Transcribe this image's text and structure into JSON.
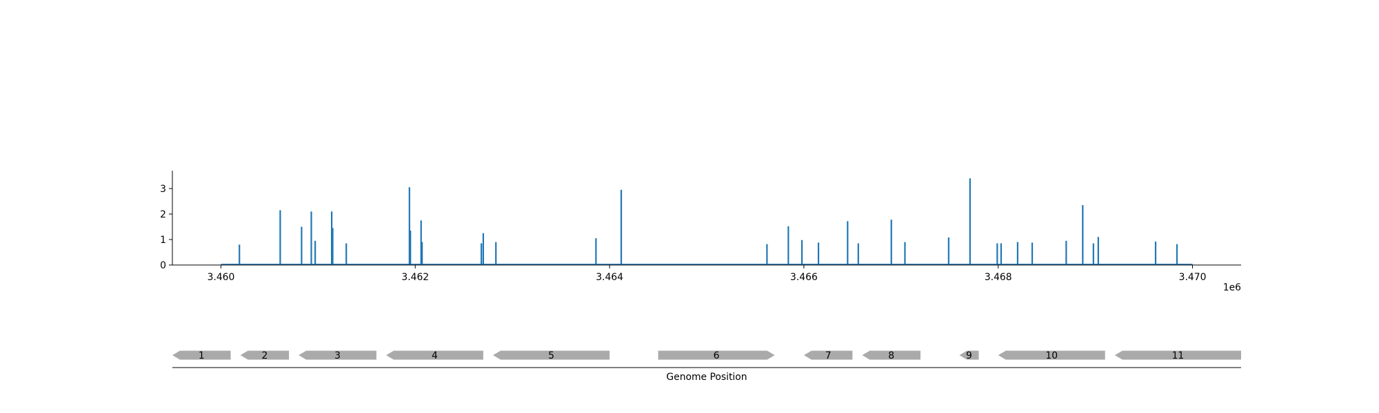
{
  "chart_data": [
    {
      "type": "bar",
      "subtype": "coverage-spikes",
      "title": "",
      "xlabel": "",
      "ylabel": "",
      "x_offset_label": "1e6",
      "x_ticks": [
        3.46,
        3.462,
        3.464,
        3.466,
        3.468,
        3.47
      ],
      "x_tick_labels": [
        "3.460",
        "3.462",
        "3.464",
        "3.466",
        "3.468",
        "3.470"
      ],
      "y_ticks": [
        0,
        1,
        2,
        3
      ],
      "y_tick_labels": [
        "0",
        "1",
        "2",
        "3"
      ],
      "xlim": [
        3.4595,
        3.4705
      ],
      "ylim": [
        0,
        3.7
      ],
      "baseline_range": [
        3.46,
        3.47
      ],
      "color": "#1f77b4",
      "grid": false,
      "x": [
        3.46019,
        3.46061,
        3.46083,
        3.46093,
        3.46097,
        3.46114,
        3.46115,
        3.46129,
        3.46194,
        3.46195,
        3.46206,
        3.46207,
        3.46268,
        3.4627,
        3.46283,
        3.46386,
        3.46412,
        3.46562,
        3.46584,
        3.46598,
        3.46615,
        3.46645,
        3.46656,
        3.4669,
        3.46704,
        3.46749,
        3.46771,
        3.46799,
        3.46803,
        3.4682,
        3.46835,
        3.4687,
        3.46887,
        3.46898,
        3.46903,
        3.46962,
        3.46984
      ],
      "values": [
        0.8,
        2.15,
        1.5,
        2.1,
        0.95,
        2.1,
        1.45,
        0.85,
        3.05,
        1.35,
        1.75,
        0.9,
        0.85,
        1.25,
        0.9,
        1.05,
        2.95,
        0.82,
        1.52,
        0.98,
        0.88,
        1.72,
        0.85,
        1.78,
        0.9,
        1.08,
        3.4,
        0.85,
        0.85,
        0.9,
        0.88,
        0.95,
        2.35,
        0.85,
        1.1,
        0.92,
        0.82
      ]
    },
    {
      "type": "gene-track",
      "title": "",
      "xlabel": "Genome Position",
      "genes": [
        {
          "label": "1",
          "start": 3.4595,
          "end": 3.4601,
          "strand": "-"
        },
        {
          "label": "2",
          "start": 3.4602,
          "end": 3.4607,
          "strand": "-"
        },
        {
          "label": "3",
          "start": 3.4608,
          "end": 3.4616,
          "strand": "-"
        },
        {
          "label": "4",
          "start": 3.4617,
          "end": 3.4627,
          "strand": "-"
        },
        {
          "label": "5",
          "start": 3.4628,
          "end": 3.464,
          "strand": "-"
        },
        {
          "label": "6",
          "start": 3.4645,
          "end": 3.4657,
          "strand": "+"
        },
        {
          "label": "7",
          "start": 3.466,
          "end": 3.4665,
          "strand": "-"
        },
        {
          "label": "8",
          "start": 3.4666,
          "end": 3.4672,
          "strand": "-"
        },
        {
          "label": "9",
          "start": 3.4676,
          "end": 3.4678,
          "strand": "-"
        },
        {
          "label": "10",
          "start": 3.468,
          "end": 3.4691,
          "strand": "-"
        },
        {
          "label": "11",
          "start": 3.4692,
          "end": 3.4705,
          "strand": "-"
        }
      ],
      "gene_color": "#aaaaaa"
    }
  ]
}
